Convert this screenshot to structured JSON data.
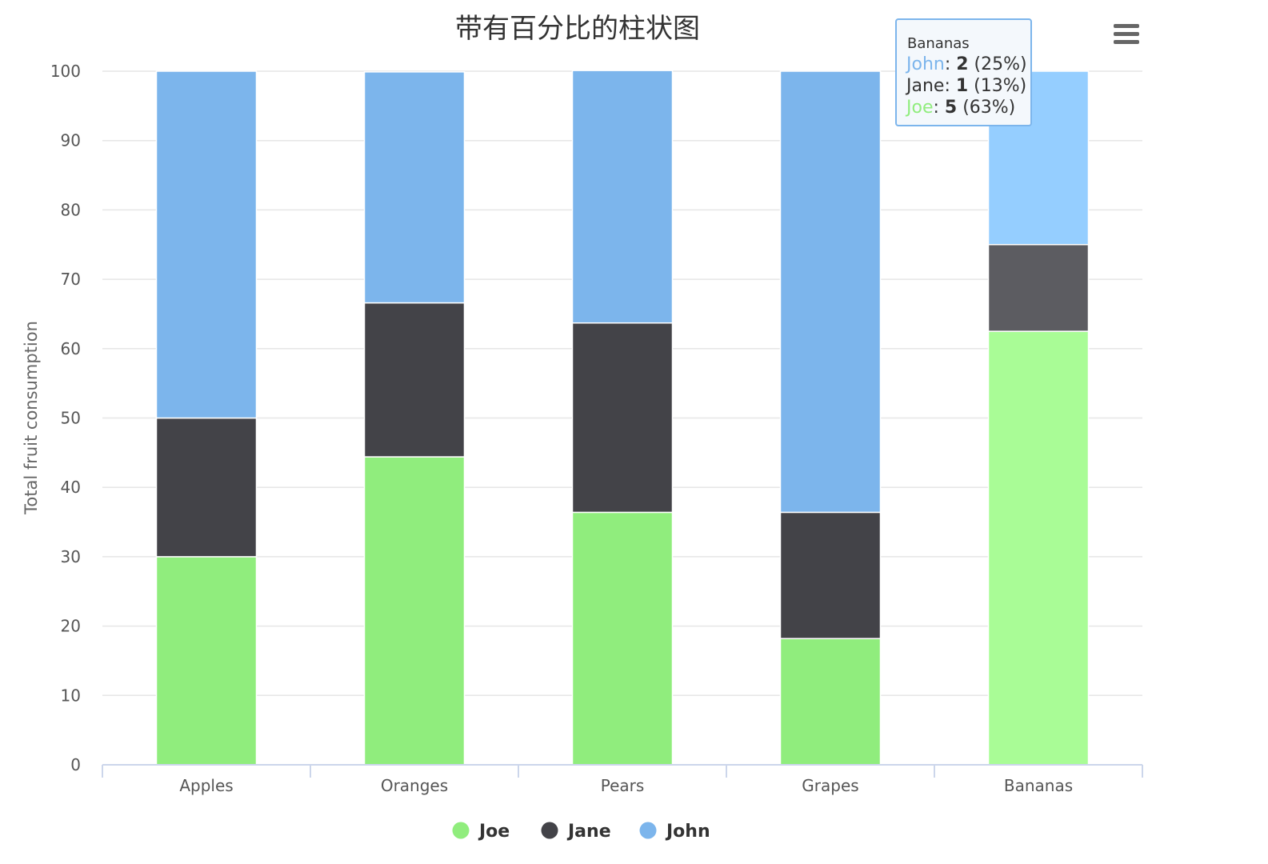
{
  "chart_data": {
    "type": "bar",
    "stacking": "percent",
    "title": "带有百分比的柱状图",
    "ylabel": "Total fruit consumption",
    "ylim": [
      0,
      100
    ],
    "yticks": [
      0,
      10,
      20,
      30,
      40,
      50,
      60,
      70,
      80,
      90,
      100
    ],
    "grid": true,
    "legend_position": "bottom-center",
    "categories": [
      "Apples",
      "Oranges",
      "Pears",
      "Grapes",
      "Bananas"
    ],
    "series": [
      {
        "name": "Joe",
        "color": "#90ed7d",
        "values": [
          30,
          44.4,
          36.4,
          18.2,
          62.5
        ]
      },
      {
        "name": "Jane",
        "color": "#434348",
        "values": [
          20,
          22.2,
          27.3,
          18.2,
          12.5
        ]
      },
      {
        "name": "John",
        "color": "#7cb5ec",
        "values": [
          50,
          33.3,
          36.4,
          63.6,
          25
        ]
      }
    ],
    "tooltip": {
      "header": "Bananas",
      "rows": [
        {
          "name": "John",
          "value": "2",
          "pct": "(25%)",
          "color": "#7cb5ec"
        },
        {
          "name": "Jane",
          "value": "1",
          "pct": "(13%)",
          "color": "#434348"
        },
        {
          "name": "Joe",
          "value": "5",
          "pct": "(63%)",
          "color": "#90ed7d"
        }
      ]
    }
  },
  "menu_icon": "hamburger-menu-icon"
}
